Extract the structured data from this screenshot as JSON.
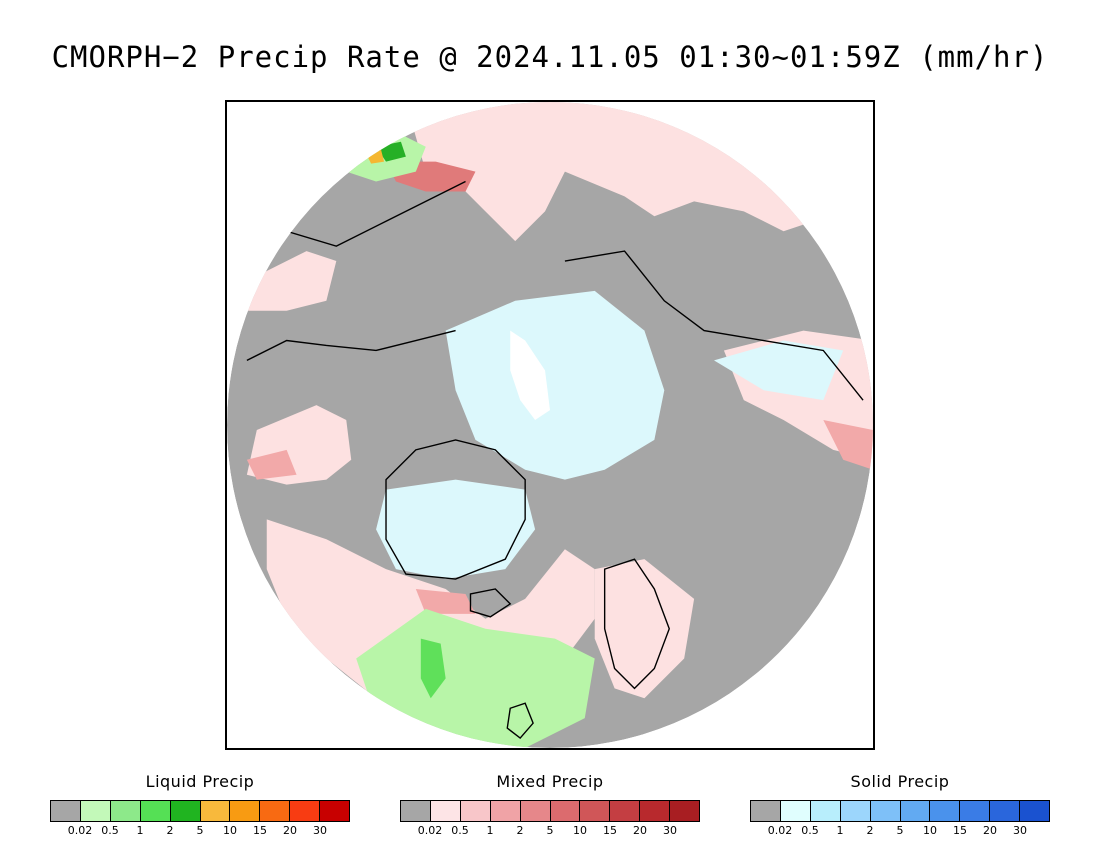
{
  "title": "CMORPH−2 Precip Rate @ 2024.11.05 01:30~01:59Z (mm/hr)",
  "map": {
    "projection": "polar-stereographic-north",
    "colors": {
      "no_precip": "#a6a6a6",
      "ocean_void": "#ffffff",
      "coastline": "#000000",
      "mixed_light": "#fde1e1",
      "mixed_moderate": "#f2a9a9",
      "mixed_heavy": "#e07a7a",
      "solid_light": "#dcf8fc",
      "liquid_light": "#b8f5a8",
      "liquid_moderate": "#5fe05a",
      "liquid_heavy": "#26b026",
      "liquid_warm": "#f5b731"
    }
  },
  "legends": [
    {
      "title": "Liquid Precip",
      "colors": [
        "#a6a6a6",
        "#c3f9b9",
        "#8de98a",
        "#55e055",
        "#20b420",
        "#f8b93c",
        "#f89b12",
        "#f86a12",
        "#f83c12",
        "#c80000"
      ],
      "ticks": [
        "0.02",
        "0.5",
        "1",
        "2",
        "5",
        "10",
        "15",
        "20",
        "30"
      ]
    },
    {
      "title": "Mixed Precip",
      "colors": [
        "#a6a6a6",
        "#fde4e6",
        "#f8c6c9",
        "#f0a3a6",
        "#e6878a",
        "#dc6b6e",
        "#d05658",
        "#c43e42",
        "#b8292d",
        "#a81e22"
      ],
      "ticks": [
        "0.02",
        "0.5",
        "1",
        "2",
        "5",
        "10",
        "15",
        "20",
        "30"
      ]
    },
    {
      "title": "Solid Precip",
      "colors": [
        "#a6a6a6",
        "#e0fefe",
        "#b8eefc",
        "#9cd6fc",
        "#7ec0f8",
        "#62aaf2",
        "#4a92ec",
        "#3a7ce6",
        "#2a66dc",
        "#1a52d0"
      ],
      "ticks": [
        "0.02",
        "0.5",
        "1",
        "2",
        "5",
        "10",
        "15",
        "20",
        "30"
      ]
    }
  ]
}
